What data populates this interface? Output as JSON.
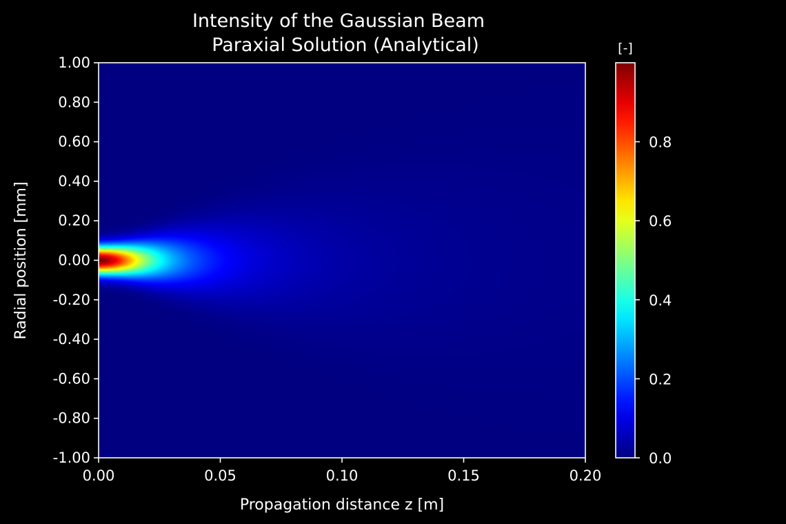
{
  "chart_data": {
    "type": "heatmap",
    "title": "Intensity of the Gaussian Beam\nParaxial Solution (Analytical)",
    "title_lines": [
      "Intensity of the Gaussian Beam",
      "Paraxial Solution (Analytical)"
    ],
    "xlabel": "Propagation distance z [m]",
    "ylabel": "Radial position [mm]",
    "xlim": [
      0.0,
      0.2
    ],
    "ylim": [
      -1.0,
      1.0
    ],
    "x_ticks": [
      0.0,
      0.05,
      0.1,
      0.15,
      0.2
    ],
    "x_tick_labels": [
      "0.00",
      "0.05",
      "0.10",
      "0.15",
      "0.20"
    ],
    "y_ticks": [
      1.0,
      0.8,
      0.6,
      0.4,
      0.2,
      0.0,
      -0.2,
      -0.4,
      -0.6,
      -0.8,
      -1.0
    ],
    "y_tick_labels": [
      "1.00",
      "0.80",
      "0.60",
      "0.40",
      "0.20",
      "0.00",
      "-0.20",
      "-0.40",
      "-0.60",
      "-0.80",
      "-1.00"
    ],
    "colormap": "jet",
    "colorbar": {
      "label": "[-]",
      "range": [
        0.0,
        1.0
      ],
      "ticks": [
        0.0,
        0.2,
        0.4,
        0.6,
        0.8
      ],
      "tick_labels": [
        "0.0",
        "0.2",
        "0.4",
        "0.6",
        "0.8"
      ]
    },
    "field": {
      "peak_intensity": 1.0,
      "waist_z": 0.0,
      "waist_radius_mm": 0.1,
      "rayleigh_range_m": 0.02
    },
    "grid": false
  }
}
